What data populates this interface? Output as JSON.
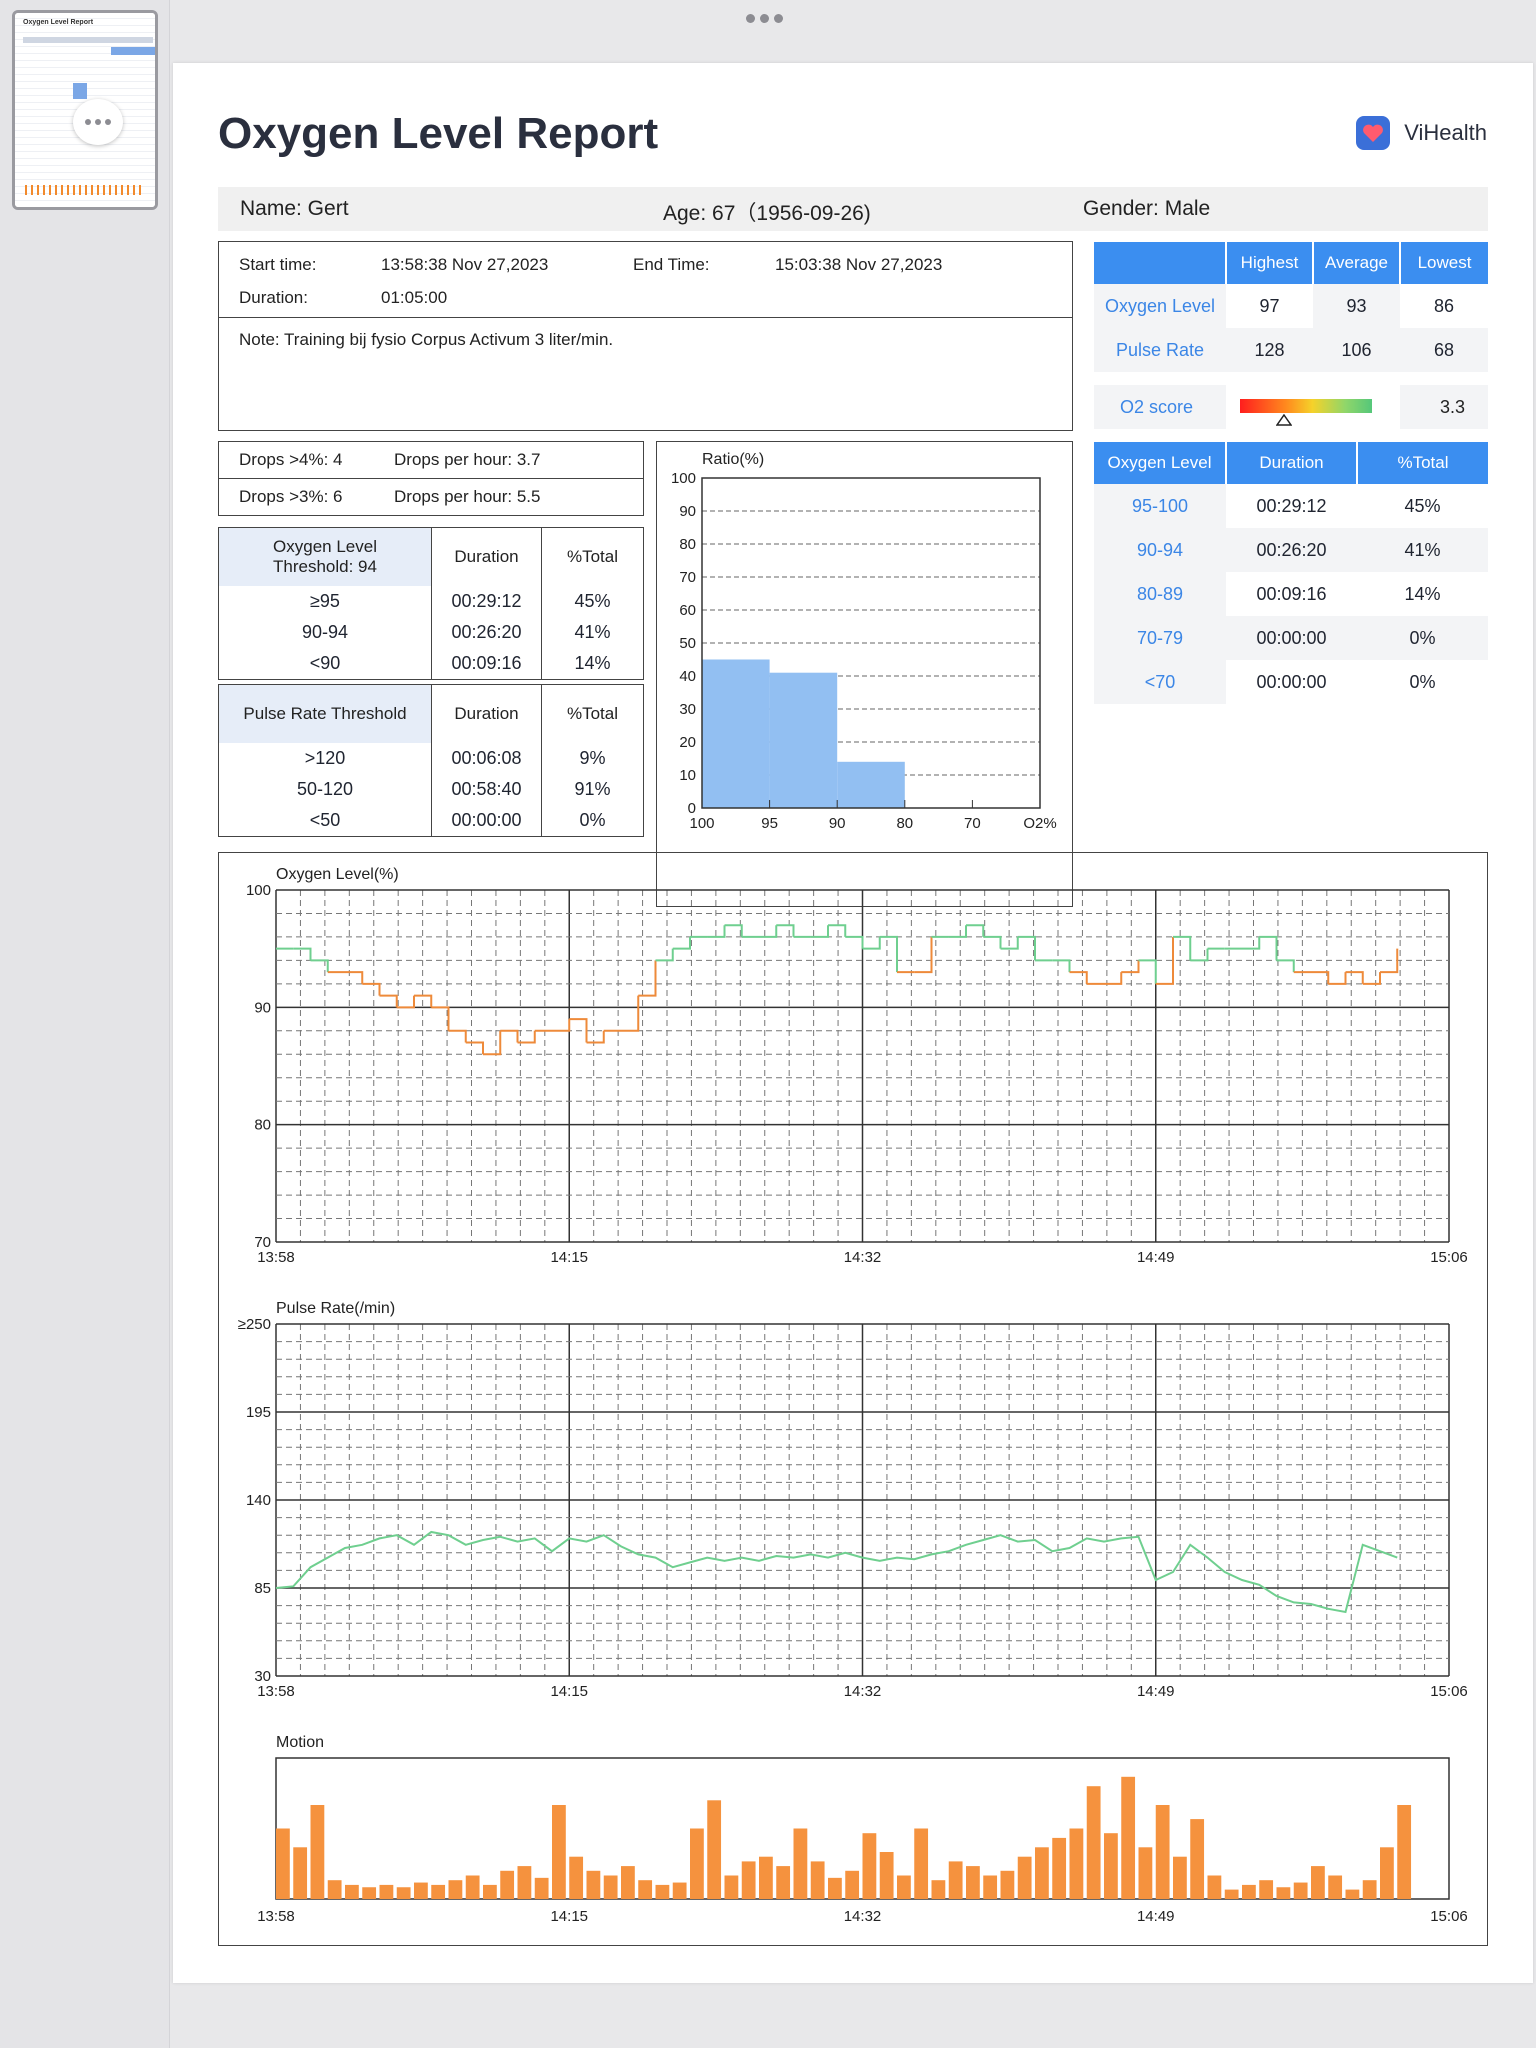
{
  "title": "Oxygen Level Report",
  "brand": "ViHealth",
  "patient": {
    "name": "Name: Gert",
    "age": "Age: 67（1956-09-26)",
    "gender": "Gender: Male"
  },
  "session": {
    "start_label": "Start time:",
    "start_value": "13:58:38 Nov 27,2023",
    "end_label": "End Time:",
    "end_value": "15:03:38 Nov 27,2023",
    "duration_label": "Duration:",
    "duration_value": "01:05:00",
    "note": "Note: Training bij fysio Corpus Activum 3 liter/min."
  },
  "drops": {
    "d4_label": "Drops >4%: 4",
    "d4_rate": "Drops per hour: 3.7",
    "d3_label": "Drops >3%: 6",
    "d3_rate": "Drops per hour: 5.5"
  },
  "summary_table": {
    "headers": [
      "Highest",
      "Average",
      "Lowest"
    ],
    "rows": [
      {
        "label": "Oxygen Level",
        "values": [
          "97",
          "93",
          "86"
        ]
      },
      {
        "label": "Pulse Rate",
        "values": [
          "128",
          "106",
          "68"
        ]
      }
    ],
    "o2_label": "O2 score",
    "o2_value": "3.3",
    "o2_score": 3.3
  },
  "oxygen_threshold_table": {
    "headers": [
      "Oxygen Level\nThreshold: 94",
      "Duration",
      "%Total"
    ],
    "rows": [
      [
        "≥95",
        "00:29:12",
        "45%"
      ],
      [
        "90-94",
        "00:26:20",
        "41%"
      ],
      [
        "<90",
        "00:09:16",
        "14%"
      ]
    ]
  },
  "pulse_threshold_table": {
    "headers": [
      "Pulse Rate Threshold",
      "Duration",
      "%Total"
    ],
    "rows": [
      [
        ">120",
        "00:06:08",
        "9%"
      ],
      [
        "50-120",
        "00:58:40",
        "91%"
      ],
      [
        "<50",
        "00:00:00",
        "0%"
      ]
    ]
  },
  "range_table": {
    "headers": [
      "Oxygen Level",
      "Duration",
      "%Total"
    ],
    "rows": [
      [
        "95-100",
        "00:29:12",
        "45%"
      ],
      [
        "90-94",
        "00:26:20",
        "41%"
      ],
      [
        "80-89",
        "00:09:16",
        "14%"
      ],
      [
        "70-79",
        "00:00:00",
        "0%"
      ],
      [
        "<70",
        "00:00:00",
        "0%"
      ]
    ]
  },
  "colors": {
    "accent": "#3b8ef0",
    "bar": "#92bff2",
    "normal_line": "#6fcf8f",
    "low_line": "#ee8a3a",
    "motion": "#f5923e"
  },
  "chart_data": [
    {
      "type": "bar",
      "title": "Ratio(%)",
      "x_ticks": [
        "100",
        "95",
        "90",
        "80",
        "70",
        "O2%"
      ],
      "y_ticks": [
        "100",
        "90",
        "80",
        "70",
        "60",
        "50",
        "40",
        "30",
        "20",
        "10",
        "0"
      ],
      "ylim": [
        0,
        100
      ],
      "bins": [
        {
          "range": "95-100",
          "value": 45
        },
        {
          "range": "90-94",
          "value": 41
        },
        {
          "range": "80-89",
          "value": 14
        },
        {
          "range": "70-79",
          "value": 0
        }
      ]
    },
    {
      "type": "line",
      "title": "Oxygen Level(%)",
      "ylim": [
        70,
        100
      ],
      "y_ticks": [
        "100",
        "90",
        "80",
        "70"
      ],
      "x_ticks": [
        "13:58",
        "14:15",
        "14:32",
        "14:49",
        "15:06"
      ],
      "threshold": 94,
      "x_minutes": [
        0,
        1,
        2,
        3,
        4,
        5,
        6,
        7,
        8,
        9,
        10,
        11,
        12,
        13,
        14,
        15,
        16,
        17,
        18,
        19,
        20,
        21,
        22,
        23,
        24,
        25,
        26,
        27,
        28,
        29,
        30,
        31,
        32,
        33,
        34,
        35,
        36,
        37,
        38,
        39,
        40,
        41,
        42,
        43,
        44,
        45,
        46,
        47,
        48,
        49,
        50,
        51,
        52,
        53,
        54,
        55,
        56,
        57,
        58,
        59,
        60,
        61,
        62,
        63,
        64,
        65
      ],
      "values": [
        95,
        95,
        94,
        93,
        93,
        92,
        91,
        90,
        91,
        90,
        88,
        87,
        86,
        88,
        87,
        88,
        88,
        89,
        87,
        88,
        88,
        91,
        94,
        95,
        96,
        96,
        97,
        96,
        96,
        97,
        96,
        96,
        97,
        96,
        95,
        96,
        93,
        93,
        96,
        96,
        97,
        96,
        95,
        96,
        94,
        94,
        93,
        92,
        92,
        93,
        94,
        92,
        96,
        94,
        95,
        95,
        95,
        96,
        94,
        93,
        93,
        92,
        93,
        92,
        93,
        95
      ]
    },
    {
      "type": "line",
      "title": "Pulse Rate(/min)",
      "ylim": [
        30,
        250
      ],
      "y_ticks": [
        "≥250",
        "195",
        "140",
        "85",
        "30"
      ],
      "x_ticks": [
        "13:58",
        "14:15",
        "14:32",
        "14:49",
        "15:06"
      ],
      "x_minutes": [
        0,
        1,
        2,
        3,
        4,
        5,
        6,
        7,
        8,
        9,
        10,
        11,
        12,
        13,
        14,
        15,
        16,
        17,
        18,
        19,
        20,
        21,
        22,
        23,
        24,
        25,
        26,
        27,
        28,
        29,
        30,
        31,
        32,
        33,
        34,
        35,
        36,
        37,
        38,
        39,
        40,
        41,
        42,
        43,
        44,
        45,
        46,
        47,
        48,
        49,
        50,
        51,
        52,
        53,
        54,
        55,
        56,
        57,
        58,
        59,
        60,
        61,
        62,
        63,
        64,
        65
      ],
      "values": [
        85,
        86,
        98,
        104,
        110,
        112,
        116,
        118,
        112,
        120,
        118,
        112,
        115,
        117,
        114,
        116,
        108,
        116,
        114,
        118,
        111,
        106,
        104,
        98,
        101,
        104,
        102,
        104,
        102,
        105,
        104,
        106,
        104,
        107,
        104,
        102,
        104,
        103,
        106,
        108,
        112,
        115,
        118,
        114,
        115,
        108,
        110,
        116,
        114,
        116,
        117,
        90,
        95,
        112,
        104,
        95,
        90,
        87,
        80,
        76,
        75,
        72,
        70,
        112,
        108,
        104
      ]
    },
    {
      "type": "bar",
      "title": "Motion",
      "x_ticks": [
        "13:58",
        "14:15",
        "14:32",
        "14:49",
        "15:06"
      ],
      "x_minutes": [
        0,
        1,
        2,
        3,
        4,
        5,
        6,
        7,
        8,
        9,
        10,
        11,
        12,
        13,
        14,
        15,
        16,
        17,
        18,
        19,
        20,
        21,
        22,
        23,
        24,
        25,
        26,
        27,
        28,
        29,
        30,
        31,
        32,
        33,
        34,
        35,
        36,
        37,
        38,
        39,
        40,
        41,
        42,
        43,
        44,
        45,
        46,
        47,
        48,
        49,
        50,
        51,
        52,
        53,
        54,
        55,
        56,
        57,
        58,
        59,
        60,
        61,
        62,
        63,
        64,
        65
      ],
      "values": [
        30,
        22,
        40,
        8,
        6,
        5,
        6,
        5,
        7,
        6,
        8,
        10,
        6,
        12,
        14,
        9,
        40,
        18,
        12,
        10,
        14,
        8,
        6,
        7,
        30,
        42,
        10,
        16,
        18,
        14,
        30,
        16,
        9,
        12,
        28,
        20,
        10,
        30,
        8,
        16,
        14,
        10,
        12,
        18,
        22,
        26,
        30,
        48,
        28,
        52,
        22,
        40,
        18,
        34,
        10,
        4,
        6,
        8,
        5,
        7,
        14,
        10,
        4,
        8,
        22,
        40
      ]
    }
  ]
}
